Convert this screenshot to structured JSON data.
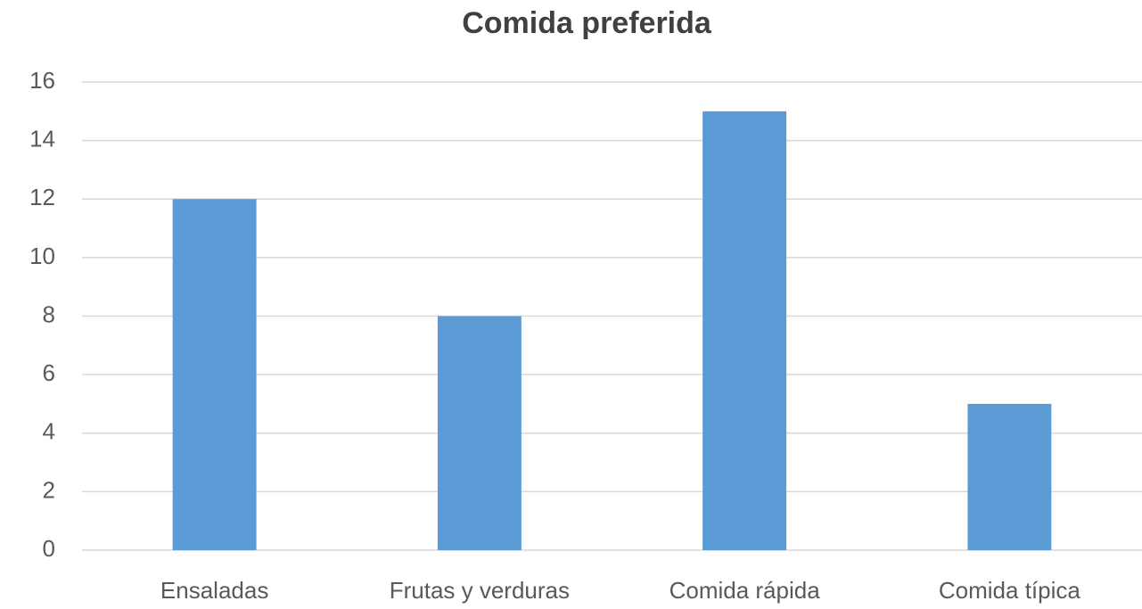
{
  "chart_data": {
    "type": "bar",
    "title": "Comida preferida",
    "categories": [
      "Ensaladas",
      "Frutas y verduras",
      "Comida rápida",
      "Comida típica"
    ],
    "values": [
      12,
      8,
      15,
      5
    ],
    "color": "#5b9bd5",
    "ylim": [
      0,
      16
    ],
    "yticks": [
      0,
      2,
      4,
      6,
      8,
      10,
      12,
      14,
      16
    ],
    "grid": true
  }
}
